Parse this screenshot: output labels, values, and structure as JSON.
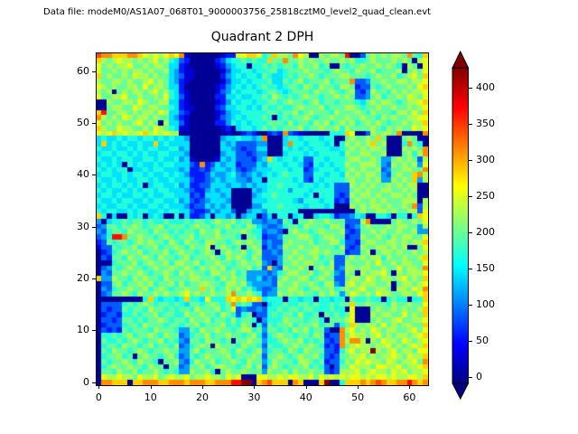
{
  "header": {
    "text": "Data file: modeM0/AS1A07_068T01_9000003756_25818cztM0_level2_quad_clean.evt"
  },
  "chart_data": {
    "type": "heatmap",
    "title": "Quadrant 2 DPH",
    "xlabel": "",
    "ylabel": "",
    "x_range": [
      0,
      64
    ],
    "y_range": [
      0,
      64
    ],
    "x_ticks": [
      0,
      10,
      20,
      30,
      40,
      50,
      60
    ],
    "y_ticks": [
      0,
      10,
      20,
      30,
      40,
      50,
      60
    ],
    "grid": false,
    "colormap": "jet",
    "vmin": -9,
    "vmax": 427,
    "colorbar": {
      "ticks": [
        0,
        50,
        100,
        150,
        200,
        250,
        300,
        350,
        400
      ],
      "extend": "both",
      "position": "right"
    },
    "value_levels": [
      0,
      28,
      57,
      85,
      113,
      142,
      170,
      198,
      227,
      255,
      283,
      312,
      340,
      368,
      397,
      425
    ],
    "cell_encoding": "Each row is a 64-char string; char 0-f indexes value_levels (counts per detector pixel). Rows listed from y=63 (top) down to y=0 (bottom).",
    "rows_top_to_bottom": [
      "cbbaaabba98989a9b100000012299aa967a887b980087887d00378787887b76a",
      "a87898878789786532000002356676766a77b778787787787866787778787089",
      "9787889778788755210000012456606676767768778670076778778787608709",
      "9778787887877854211000001355665667756777877767877687786777807879",
      "a78778798878775431100000245656657655676778767778877767877867897a",
      "8778878778978754210000001355656667557678677786777b33477877887889",
      "987877887978875520000001245656567665677687687768872337678777879a",
      "8780787887897865210000013465666567765677768778767832487768787889",
      "9778897787787965310000022556556676876767877677878733478677879879",
      "008778879877885521000001246566566776787767867767776578788767889a",
      "0078877987887765211000023556656576676678777867778876778778778789",
      "ad7788787887985532000001245566666776778678777687778768777688797a",
      "b878798788787754210000013456566676067677876778778778776878778899",
      "978787789787085531000002246565666777686776878678786787876778788a",
      "a877988778798765110000001205665676767778677877868777787687877989",
      "989a89889a89898800000000010023200232b32100000666a900387887b0000b",
      "56556566566565655400000045565545b000566566656600787787a700078700",
      "5a565655655a5655550000005453333440005b665666560687878a780006b760",
      "655655656566556645000000554323355000656565666556787878870008787b",
      "566566565655665554000000455332344000566656566665877887780007868b",
      "655656655665655645100001545333245a656656336656667887787447878738",
      "56565065655656655532b2354552333546665665326565668778887438787849",
      "656566055656655545223245545323455566656623566656787877834778877b",
      "5665565665655656542223544564345456567666336656658787887437877ab8",
      "6556565566565565553223454554435506666656326566667877878448787a48",
      "5656656560566556452233555455454556676665665656333878787787878800",
      "6565565656656655543224545500005456666466656666333787877887787800",
      "5665655665655665552325554500004566766666560666323878878778878700",
      "6556566556566556453234555400005556666654666566232787787877788808",
      "565566565566565554233545450000446667666656665600087878878778 7b38",
      "6566556566556566553223545530045546666660000000000078778878778839",
      "a6050065605650060522350554504550350660560056652334650066506606a9",
      "40566767767667666767767877867744344376077877877 73338b00007877879",
      "3477677876778677767877677867687543346776877768872347877787887748",
      "4367768777687767677687786777876634430787767877783237787877877844",
      "346ddb778776787677867778777607762334777887678877233877876878 8779",
      "23767767878776876877688776787877343378777867788 6332788778878788a",
      "1337677867786778768778078767078724348778778777683238778878780079",
      "0236787786777867877678707877867833437787788787772337807887877878",
      "032776877876877678677787687876873334787877867733787878868778778a",
      "0006777867877868877867787767877843047787887768338777879778788779",
      "034767877678778778768787867778673a43877870787834887887787797887b",
      "0437787787677876878776887786744443467887786787438708788970878889",
      "a4487768787768777788777687877445343787788678773378879878878 9787a",
      "0337867787867786867788776887854444387787787688438978887780788789",
      "04367787786787677877a786787867543347788767877867878977887088798b",
      "03477876877878778978778778b77876344878787768787479878798877 8879a",
      "0000000006a656656a6659666a9a9a9a5666066566066566076676606766066a",
      "03333676787677676577678767b676330566766776766767 7a77877768778779",
      "032337677687767677687778679343343667677677666766090007877878778a",
      "02332667677867766877877687636703367677686670767679000878877 9787a",
      "0332377676778767768778677686776046668777677607778900078778977889",
      "023336776877767767786777867687063767786777867736 7a8788797878877a",
      "0323276777687776447687787767886747767687867 7300b8978798788778979",
      "06676786778768773467786778776786367877677687233b798878978788789a",
      "07667678767786764377687767077877466787786767323b8bb8087988798789",
      "06776877678677683467870877768776376677877876232b789887889787898a",
      "0768776787677877447867778768767846776876877 7332689788f8789788799",
      "06778670787767863476787778677787377876787786323 7788978788987988a",
      "07677876877607784368778677876877468777688767233 6879898879878897b",
      "06787787768770773477867887767868378767778676303 7798887998897889a",
      "07768778677876764487786078778777487786877877 32388897898879897889",
      "0988988798897898897889887989000998898998897989 89899898998988998a",
      "0bbaaa0aabbbaabbbabbbaabbbddff0abcaaa0ba000af006aaababcbaabbdbab"
    ]
  }
}
